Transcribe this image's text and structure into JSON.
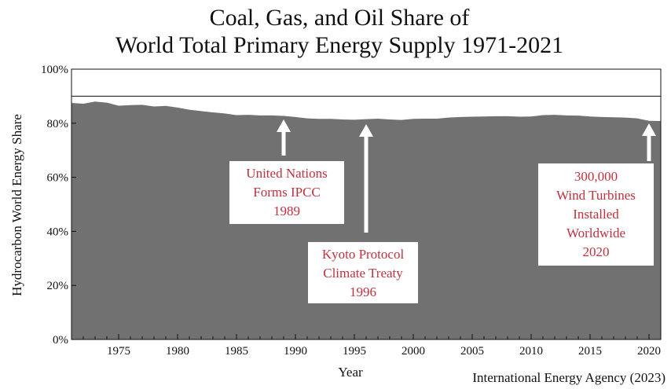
{
  "chart_data": {
    "type": "area",
    "title_lines": [
      "Coal, Gas, and Oil Share of",
      "World Total Primary Energy Supply 1971-2021"
    ],
    "xlabel": "Year",
    "ylabel": "Hydrocarbon World Energy Share",
    "source": "International Energy Agency (2023)",
    "xlim": [
      1971,
      2021
    ],
    "ylim": [
      0,
      100
    ],
    "yticks": [
      0,
      20,
      40,
      60,
      80,
      100
    ],
    "ytick_labels": [
      "0%",
      "20%",
      "40%",
      "60%",
      "80%",
      "100%"
    ],
    "xticks": [
      1975,
      1980,
      1985,
      1990,
      1995,
      2000,
      2005,
      2010,
      2015,
      2020
    ],
    "xtick_labels": [
      "1975",
      "1980",
      "1985",
      "1990",
      "1995",
      "2000",
      "2005",
      "2010",
      "2015",
      "2020"
    ],
    "reference_line": 90,
    "fill_color": "#717171",
    "annotation_color": "#c0313d",
    "series": [
      {
        "x": [
          1971,
          1972,
          1973,
          1974,
          1975,
          1976,
          1977,
          1978,
          1979,
          1980,
          1981,
          1982,
          1983,
          1984,
          1985,
          1986,
          1987,
          1988,
          1989,
          1990,
          1991,
          1992,
          1993,
          1994,
          1995,
          1996,
          1997,
          1998,
          1999,
          2000,
          2001,
          2002,
          2003,
          2004,
          2005,
          2006,
          2007,
          2008,
          2009,
          2010,
          2011,
          2012,
          2013,
          2014,
          2015,
          2016,
          2017,
          2018,
          2019,
          2020,
          2021
        ],
        "values": [
          87.5,
          87.2,
          88.0,
          87.6,
          86.5,
          86.7,
          86.8,
          86.2,
          86.4,
          85.8,
          85.0,
          84.5,
          84.0,
          83.6,
          83.0,
          83.1,
          82.9,
          82.9,
          82.7,
          82.3,
          81.8,
          81.6,
          81.6,
          81.4,
          81.3,
          81.5,
          81.7,
          81.4,
          81.2,
          81.6,
          81.7,
          81.7,
          82.1,
          82.3,
          82.4,
          82.5,
          82.6,
          82.6,
          82.4,
          82.5,
          83.0,
          83.1,
          82.9,
          82.8,
          82.5,
          82.3,
          82.2,
          82.1,
          81.8,
          80.9,
          80.8
        ]
      }
    ],
    "annotations": [
      {
        "lines": [
          "United Nations",
          "Forms IPCC",
          "1989"
        ],
        "arrow_year": 1989
      },
      {
        "lines": [
          "Kyoto Protocol",
          "Climate Treaty",
          "1996"
        ],
        "arrow_year": 1996
      },
      {
        "lines": [
          "300,000",
          "Wind Turbines",
          "Installed",
          "Worldwide",
          "2020"
        ],
        "arrow_year": 2020
      }
    ]
  }
}
